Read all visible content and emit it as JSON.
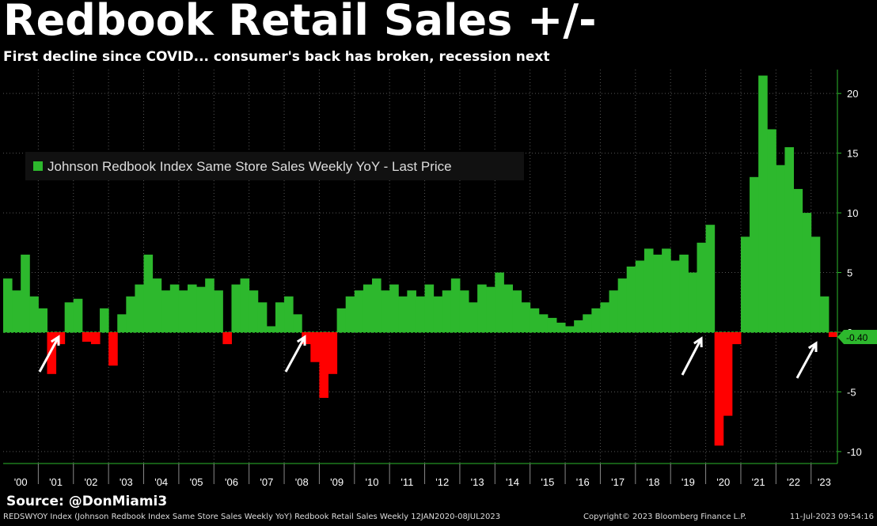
{
  "header": {
    "title": "Redbook Retail Sales +/-",
    "subtitle": "First decline since COVID... consumer's back has broken, recession next"
  },
  "source": "Source: @DonMiami3",
  "footer": {
    "left": "REDSWYOY Index (Johnson Redbook Index Same Store Sales Weekly YoY) Redbook Retail Sales  Weekly 12JAN2020-08JUL2023",
    "copyright": "Copyright© 2023 Bloomberg Finance L.P.",
    "timestamp": "11-Jul-2023 09:54:16"
  },
  "chart_data": {
    "type": "bar",
    "title": "Redbook Retail Sales +/-",
    "legend": "Johnson Redbook Index Same Store Sales Weekly YoY - Last Price",
    "legend_position": "top-left",
    "series": [
      {
        "name": "Johnson Redbook Index Same Store Sales Weekly YoY - Last Price",
        "x": [
          2000.0,
          2000.25,
          2000.5,
          2000.75,
          2001.0,
          2001.25,
          2001.5,
          2001.75,
          2002.0,
          2002.25,
          2002.5,
          2002.75,
          2003.0,
          2003.25,
          2003.5,
          2003.75,
          2004.0,
          2004.25,
          2004.5,
          2004.75,
          2005.0,
          2005.25,
          2005.5,
          2005.75,
          2006.0,
          2006.25,
          2006.5,
          2006.75,
          2007.0,
          2007.25,
          2007.5,
          2007.75,
          2008.0,
          2008.25,
          2008.5,
          2008.75,
          2009.0,
          2009.25,
          2009.5,
          2009.75,
          2010.0,
          2010.25,
          2010.5,
          2010.75,
          2011.0,
          2011.25,
          2011.5,
          2011.75,
          2012.0,
          2012.25,
          2012.5,
          2012.75,
          2013.0,
          2013.25,
          2013.5,
          2013.75,
          2014.0,
          2014.25,
          2014.5,
          2014.75,
          2015.0,
          2015.25,
          2015.5,
          2015.75,
          2016.0,
          2016.25,
          2016.5,
          2016.75,
          2017.0,
          2017.25,
          2017.5,
          2017.75,
          2018.0,
          2018.25,
          2018.5,
          2018.75,
          2019.0,
          2019.25,
          2019.5,
          2019.75,
          2020.0,
          2020.25,
          2020.5,
          2020.75,
          2021.0,
          2021.25,
          2021.5,
          2021.75,
          2022.0,
          2022.25,
          2022.5,
          2022.75,
          2023.0,
          2023.25,
          2023.5
        ],
        "values": [
          4.5,
          3.5,
          6.5,
          3.0,
          2.0,
          -3.5,
          -1.0,
          2.5,
          2.8,
          -0.8,
          -1.0,
          2.0,
          -2.8,
          1.5,
          3.0,
          4.0,
          6.5,
          4.5,
          3.5,
          4.0,
          3.5,
          4.0,
          3.8,
          4.5,
          3.5,
          -1.0,
          4.0,
          4.5,
          3.5,
          2.5,
          0.5,
          2.5,
          3.0,
          1.5,
          -1.0,
          -2.5,
          -5.5,
          -3.5,
          2.0,
          3.0,
          3.5,
          4.0,
          4.5,
          3.5,
          4.0,
          3.0,
          3.5,
          3.0,
          4.0,
          3.0,
          3.5,
          4.5,
          3.5,
          2.5,
          4.0,
          3.8,
          5.0,
          4.0,
          3.5,
          2.5,
          2.0,
          1.5,
          1.2,
          0.8,
          0.5,
          1.0,
          1.5,
          2.0,
          2.5,
          3.5,
          4.5,
          5.5,
          6.0,
          7.0,
          6.5,
          7.0,
          6.0,
          6.5,
          5.0,
          7.5,
          9.0,
          -9.5,
          -7.0,
          -1.0,
          8.0,
          13.0,
          21.5,
          17.0,
          14.0,
          15.5,
          12.0,
          10.0,
          8.0,
          3.0,
          -0.4
        ]
      }
    ],
    "last_value_label": "-0.40",
    "yticks": [
      20,
      15,
      10,
      5,
      0,
      -5,
      -10
    ],
    "ylim": [
      -11,
      22
    ],
    "xlim": [
      2000.0,
      2023.75
    ],
    "x_tick_labels": [
      "'00",
      "'01",
      "'02",
      "'03",
      "'04",
      "'05",
      "'06",
      "'07",
      "'08",
      "'09",
      "'10",
      "'11",
      "'12",
      "'13",
      "'14",
      "'15",
      "'16",
      "'17",
      "'18",
      "'19",
      "'20",
      "'21",
      "'22",
      "'23"
    ],
    "annotations": [
      "arrow near '01 dip",
      "arrow near '08 dip",
      "arrow near '20 dip",
      "arrow near '23 dip"
    ],
    "colors": {
      "positive": "#2db82d",
      "negative": "#ff0000",
      "axis": "#2db82d",
      "zero_line": "#2db82d"
    }
  }
}
